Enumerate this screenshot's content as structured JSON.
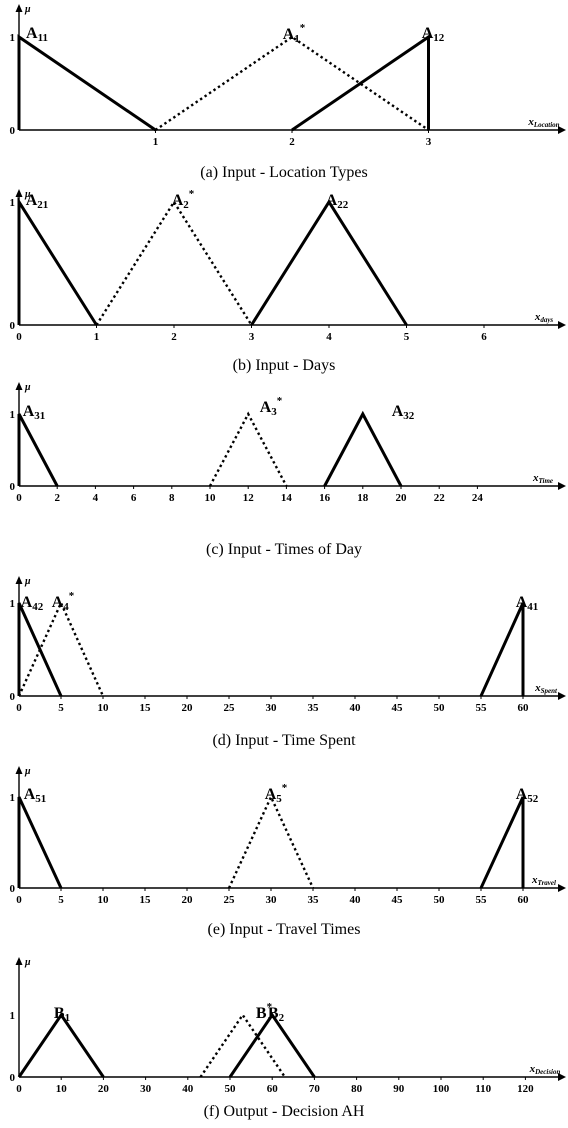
{
  "chart_data": [
    {
      "type": "line",
      "caption": "(a) Input - Location Types",
      "xlabel": "x",
      "xlabel_sub": "Location",
      "ylabel": "μ",
      "xlim": [
        0,
        3.15
      ],
      "ylim": [
        0,
        1
      ],
      "xticks": [
        1,
        2,
        3
      ],
      "yticks": [
        0,
        1
      ],
      "series": [
        {
          "name": "A",
          "sub": "11",
          "sup": "",
          "style": "solid",
          "x": [
            0,
            0,
            1
          ],
          "y": [
            0,
            1,
            0
          ]
        },
        {
          "name": "A",
          "sub": "1",
          "sup": "*",
          "style": "dotted",
          "x": [
            1,
            2,
            3
          ],
          "y": [
            0,
            1,
            0
          ]
        },
        {
          "name": "A",
          "sub": "12",
          "sup": "",
          "style": "solid",
          "x": [
            2,
            3,
            3
          ],
          "y": [
            0,
            1,
            0
          ]
        }
      ]
    },
    {
      "type": "line",
      "caption": "(b) Input - Days",
      "xlabel": "x",
      "xlabel_sub": "days",
      "ylabel": "μ",
      "xlim": [
        0,
        6.9
      ],
      "ylim": [
        0,
        1
      ],
      "xticks": [
        0,
        1,
        2,
        3,
        4,
        5,
        6
      ],
      "yticks": [
        0,
        1
      ],
      "series": [
        {
          "name": "A",
          "sub": "21",
          "sup": "",
          "style": "solid",
          "x": [
            0,
            0,
            1
          ],
          "y": [
            0,
            1,
            0
          ]
        },
        {
          "name": "A",
          "sub": "2",
          "sup": "*",
          "style": "dotted",
          "x": [
            1,
            2,
            3
          ],
          "y": [
            0,
            1,
            0
          ]
        },
        {
          "name": "A",
          "sub": "22",
          "sup": "",
          "style": "solid",
          "x": [
            3,
            4,
            5
          ],
          "y": [
            0,
            1,
            0
          ]
        }
      ]
    },
    {
      "type": "line",
      "caption": "(c) Input - Times of Day",
      "xlabel": "x",
      "xlabel_sub": "Time",
      "ylabel": "μ",
      "xlim": [
        0,
        26
      ],
      "ylim": [
        0,
        1
      ],
      "xticks": [
        0,
        2,
        4,
        6,
        8,
        10,
        12,
        14,
        16,
        18,
        20,
        22,
        24
      ],
      "yticks": [
        0,
        1
      ],
      "series": [
        {
          "name": "A",
          "sub": "31",
          "sup": "",
          "style": "solid",
          "x": [
            0,
            0,
            2
          ],
          "y": [
            0,
            1,
            0
          ]
        },
        {
          "name": "A",
          "sub": "3",
          "sup": "*",
          "style": "dotted",
          "x": [
            10,
            12,
            14
          ],
          "y": [
            0,
            1,
            0
          ]
        },
        {
          "name": "A",
          "sub": "32",
          "sup": "",
          "style": "solid",
          "x": [
            16,
            18,
            20
          ],
          "y": [
            0,
            1,
            0
          ]
        }
      ]
    },
    {
      "type": "line",
      "caption": "(d) Input - Time Spent",
      "xlabel": "x",
      "xlabel_sub": "Spent",
      "ylabel": "μ",
      "xlim": [
        0,
        65
      ],
      "ylim": [
        0,
        1
      ],
      "xticks": [
        0,
        5,
        10,
        15,
        20,
        25,
        30,
        35,
        40,
        45,
        50,
        55,
        60
      ],
      "yticks": [
        0,
        1
      ],
      "series": [
        {
          "name": "A",
          "sub": "42",
          "sup": "",
          "style": "solid",
          "x": [
            0,
            0,
            5
          ],
          "y": [
            0,
            1,
            0
          ]
        },
        {
          "name": "A",
          "sub": "4",
          "sup": "*",
          "style": "dotted",
          "x": [
            0,
            5,
            10
          ],
          "y": [
            0,
            1,
            0
          ]
        },
        {
          "name": "A",
          "sub": "41",
          "sup": "",
          "style": "solid",
          "x": [
            55,
            60,
            60
          ],
          "y": [
            0,
            1,
            0
          ]
        }
      ]
    },
    {
      "type": "line",
      "caption": "(e) Input - Travel Times",
      "xlabel": "x",
      "xlabel_sub": "Travel",
      "ylabel": "μ",
      "xlim": [
        0,
        65
      ],
      "ylim": [
        0,
        1
      ],
      "xticks": [
        0,
        5,
        10,
        15,
        20,
        25,
        30,
        35,
        40,
        45,
        50,
        55,
        60
      ],
      "yticks": [
        0,
        1
      ],
      "series": [
        {
          "name": "A",
          "sub": "51",
          "sup": "",
          "style": "solid",
          "x": [
            0,
            0,
            5
          ],
          "y": [
            0,
            1,
            0
          ]
        },
        {
          "name": "A",
          "sub": "5",
          "sup": "*",
          "style": "dotted",
          "x": [
            25,
            30,
            35
          ],
          "y": [
            0,
            1,
            0
          ]
        },
        {
          "name": "A",
          "sub": "52",
          "sup": "",
          "style": "solid",
          "x": [
            55,
            60,
            60
          ],
          "y": [
            0,
            1,
            0
          ]
        }
      ]
    },
    {
      "type": "line",
      "caption": "(f) Output - Decision AH",
      "xlabel": "x",
      "xlabel_sub": "Decision",
      "ylabel": "μ",
      "xlim": [
        0,
        129
      ],
      "ylim": [
        0,
        1
      ],
      "xticks": [
        0,
        10,
        20,
        30,
        40,
        50,
        60,
        70,
        80,
        90,
        100,
        110,
        120
      ],
      "yticks": [
        0,
        1
      ],
      "series": [
        {
          "name": "B",
          "sub": "1",
          "sup": "",
          "style": "solid",
          "x": [
            0,
            10,
            20
          ],
          "y": [
            0,
            1,
            0
          ]
        },
        {
          "name": "B",
          "sub": "",
          "sup": "*",
          "style": "dotted",
          "x": [
            43,
            53,
            63
          ],
          "y": [
            0,
            1,
            0
          ]
        },
        {
          "name": "B",
          "sub": "2",
          "sup": "",
          "style": "solid",
          "x": [
            50,
            60,
            70
          ],
          "y": [
            0,
            1,
            0
          ]
        }
      ]
    }
  ]
}
